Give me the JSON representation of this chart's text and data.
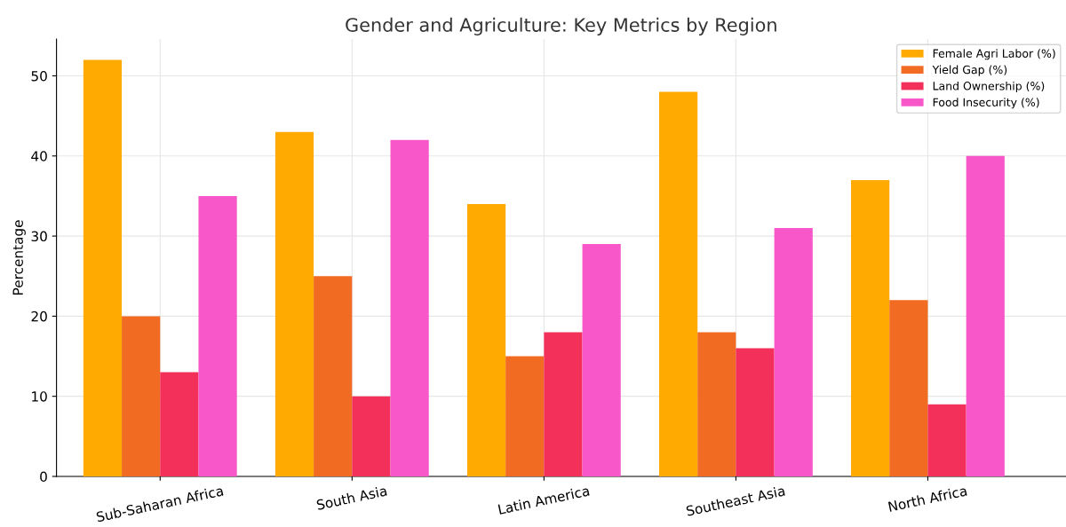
{
  "chart_data": {
    "type": "bar",
    "title": "Gender and Agriculture: Key Metrics by Region",
    "ylabel": "Percentage",
    "categories": [
      "Sub-Saharan Africa",
      "South Asia",
      "Latin America",
      "Southeast Asia",
      "North Africa"
    ],
    "series": [
      {
        "name": "Female Agri Labor (%)",
        "color": "#ffaa00",
        "values": [
          52,
          43,
          34,
          48,
          37
        ]
      },
      {
        "name": "Yield Gap (%)",
        "color": "#f26b22",
        "values": [
          20,
          25,
          15,
          18,
          22
        ]
      },
      {
        "name": "Land Ownership (%)",
        "color": "#f2305a",
        "values": [
          13,
          10,
          18,
          16,
          9
        ]
      },
      {
        "name": "Food Insecurity (%)",
        "color": "#f757c8",
        "values": [
          35,
          42,
          29,
          31,
          40
        ]
      }
    ],
    "ylim": [
      0,
      54.6
    ],
    "yticks": [
      0,
      10,
      20,
      30,
      40,
      50
    ],
    "grid": true,
    "legend": "top right"
  }
}
